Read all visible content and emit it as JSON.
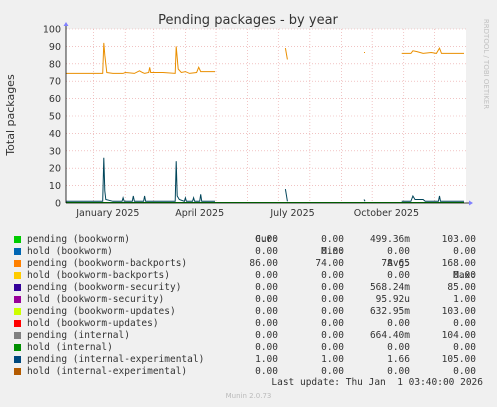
{
  "chart_data": {
    "type": "line",
    "title": "Pending packages - by year",
    "ylabel": "Total packages",
    "watermark": "RRDTOOL / TOBI OETIKER",
    "ylim": [
      0,
      100
    ],
    "yticks": [
      0,
      10,
      20,
      30,
      40,
      50,
      60,
      70,
      80,
      90,
      100
    ],
    "xlim": [
      "2024-12-05",
      "2026-01-01"
    ],
    "xticks": [
      {
        "label": "January 2025",
        "date": "2025-01-15"
      },
      {
        "label": "April 2025",
        "date": "2025-04-15"
      },
      {
        "label": "July 2025",
        "date": "2025-07-15"
      },
      {
        "label": "October 2025",
        "date": "2025-10-15"
      }
    ],
    "grid": true,
    "colors": {
      "backports": "#ea8f00",
      "experimental": "#00455a",
      "internal": "#009400"
    },
    "series": [
      {
        "name": "pending (bookworm-backports)",
        "color": "#ea8f00",
        "segments": [
          [
            [
              "2024-12-05",
              74.5
            ],
            [
              "2025-01-10",
              74.5
            ],
            [
              "2025-01-11",
              92
            ],
            [
              "2025-01-12",
              85
            ],
            [
              "2025-01-14",
              75
            ],
            [
              "2025-01-20",
              74.5
            ],
            [
              "2025-01-30",
              74.5
            ],
            [
              "2025-02-01",
              75
            ],
            [
              "2025-02-10",
              74.5
            ],
            [
              "2025-02-15",
              76
            ],
            [
              "2025-02-18",
              75
            ],
            [
              "2025-02-20",
              74.5
            ],
            [
              "2025-02-24",
              75
            ],
            [
              "2025-02-25",
              78
            ],
            [
              "2025-02-26",
              75
            ],
            [
              "2025-03-10",
              75
            ],
            [
              "2025-03-22",
              74.5
            ],
            [
              "2025-03-23",
              90
            ],
            [
              "2025-03-25",
              77
            ],
            [
              "2025-03-28",
              75
            ],
            [
              "2025-04-01",
              75.5
            ],
            [
              "2025-04-05",
              74.5
            ],
            [
              "2025-04-12",
              75
            ],
            [
              "2025-04-14",
              78
            ],
            [
              "2025-04-16",
              75.5
            ],
            [
              "2025-04-30",
              75.5
            ]
          ],
          [
            [
              "2025-07-08",
              89
            ],
            [
              "2025-07-10",
              82.5
            ]
          ],
          [
            [
              "2025-09-23",
              86.5
            ],
            [
              "2025-09-24",
              86.5
            ]
          ],
          [
            [
              "2025-10-30",
              86
            ],
            [
              "2025-11-08",
              86
            ],
            [
              "2025-11-10",
              87.5
            ],
            [
              "2025-11-14",
              87
            ],
            [
              "2025-11-20",
              86
            ],
            [
              "2025-11-28",
              86.5
            ],
            [
              "2025-12-03",
              86
            ],
            [
              "2025-12-06",
              89
            ],
            [
              "2025-12-08",
              86
            ],
            [
              "2025-12-30",
              86
            ]
          ]
        ]
      },
      {
        "name": "pending (internal-experimental)",
        "color": "#00455a",
        "segments": [
          [
            [
              "2024-12-05",
              1
            ],
            [
              "2025-01-10",
              1
            ],
            [
              "2025-01-11",
              26
            ],
            [
              "2025-01-12",
              7
            ],
            [
              "2025-01-13",
              2
            ],
            [
              "2025-01-20",
              1
            ],
            [
              "2025-01-29",
              1
            ],
            [
              "2025-01-30",
              3
            ],
            [
              "2025-01-31",
              1
            ],
            [
              "2025-02-08",
              1
            ],
            [
              "2025-02-09",
              4
            ],
            [
              "2025-02-10",
              1
            ],
            [
              "2025-02-19",
              1
            ],
            [
              "2025-02-20",
              4
            ],
            [
              "2025-02-21",
              1
            ],
            [
              "2025-03-22",
              1
            ],
            [
              "2025-03-23",
              24
            ],
            [
              "2025-03-24",
              4
            ],
            [
              "2025-03-26",
              2
            ],
            [
              "2025-03-31",
              1
            ],
            [
              "2025-04-01",
              3
            ],
            [
              "2025-04-02",
              1
            ],
            [
              "2025-04-08",
              1
            ],
            [
              "2025-04-09",
              3
            ],
            [
              "2025-04-10",
              1
            ],
            [
              "2025-04-15",
              1
            ],
            [
              "2025-04-16",
              5
            ],
            [
              "2025-04-17",
              1
            ],
            [
              "2025-04-30",
              1
            ]
          ],
          [
            [
              "2025-07-08",
              8
            ],
            [
              "2025-07-10",
              1
            ]
          ],
          [
            [
              "2025-09-23",
              2
            ],
            [
              "2025-09-24",
              1
            ]
          ],
          [
            [
              "2025-10-30",
              1
            ],
            [
              "2025-11-08",
              1
            ],
            [
              "2025-11-10",
              4
            ],
            [
              "2025-11-12",
              2
            ],
            [
              "2025-11-20",
              2
            ],
            [
              "2025-11-22",
              1
            ],
            [
              "2025-12-05",
              1
            ],
            [
              "2025-12-06",
              4
            ],
            [
              "2025-12-07",
              1
            ],
            [
              "2025-12-30",
              1
            ]
          ]
        ]
      },
      {
        "name": "pending (internal)",
        "color": "#009400",
        "segments": [
          [
            [
              "2024-12-05",
              0.3
            ],
            [
              "2025-12-30",
              0.3
            ]
          ]
        ]
      }
    ]
  },
  "legend": {
    "headers": [
      "Cur:",
      "Min:",
      "Avg:",
      "Max:"
    ],
    "rows": [
      {
        "color": "#00cc00",
        "name": "pending (bookworm)",
        "cur": "0.00",
        "min": "0.00",
        "avg": "499.36m",
        "max": "103.00"
      },
      {
        "color": "#0066b3",
        "name": "hold (bookworm)",
        "cur": "0.00",
        "min": "0.00",
        "avg": "0.00",
        "max": "0.00"
      },
      {
        "color": "#ff8000",
        "name": "pending (bookworm-backports)",
        "cur": "86.00",
        "min": "74.00",
        "avg": "78.65",
        "max": "168.00"
      },
      {
        "color": "#ffcc00",
        "name": "hold (bookworm-backports)",
        "cur": "0.00",
        "min": "0.00",
        "avg": "0.00",
        "max": "0.00"
      },
      {
        "color": "#330099",
        "name": "pending (bookworm-security)",
        "cur": "0.00",
        "min": "0.00",
        "avg": "568.24m",
        "max": "85.00"
      },
      {
        "color": "#990099",
        "name": "hold (bookworm-security)",
        "cur": "0.00",
        "min": "0.00",
        "avg": "95.92u",
        "max": "1.00"
      },
      {
        "color": "#ccff00",
        "name": "pending (bookworm-updates)",
        "cur": "0.00",
        "min": "0.00",
        "avg": "632.95m",
        "max": "103.00"
      },
      {
        "color": "#ff0000",
        "name": "hold (bookworm-updates)",
        "cur": "0.00",
        "min": "0.00",
        "avg": "0.00",
        "max": "0.00"
      },
      {
        "color": "#808080",
        "name": "pending (internal)",
        "cur": "0.00",
        "min": "0.00",
        "avg": "664.40m",
        "max": "104.00"
      },
      {
        "color": "#008f00",
        "name": "hold (internal)",
        "cur": "0.00",
        "min": "0.00",
        "avg": "0.00",
        "max": "0.00"
      },
      {
        "color": "#00487d",
        "name": "pending (internal-experimental)",
        "cur": "1.00",
        "min": "1.00",
        "avg": "1.66",
        "max": "105.00"
      },
      {
        "color": "#b35a00",
        "name": "hold (internal-experimental)",
        "cur": "0.00",
        "min": "0.00",
        "avg": "0.00",
        "max": "0.00"
      }
    ]
  },
  "last_update": "Last update: Thu Jan  1 03:40:00 2026",
  "footer": "Munin 2.0.73"
}
